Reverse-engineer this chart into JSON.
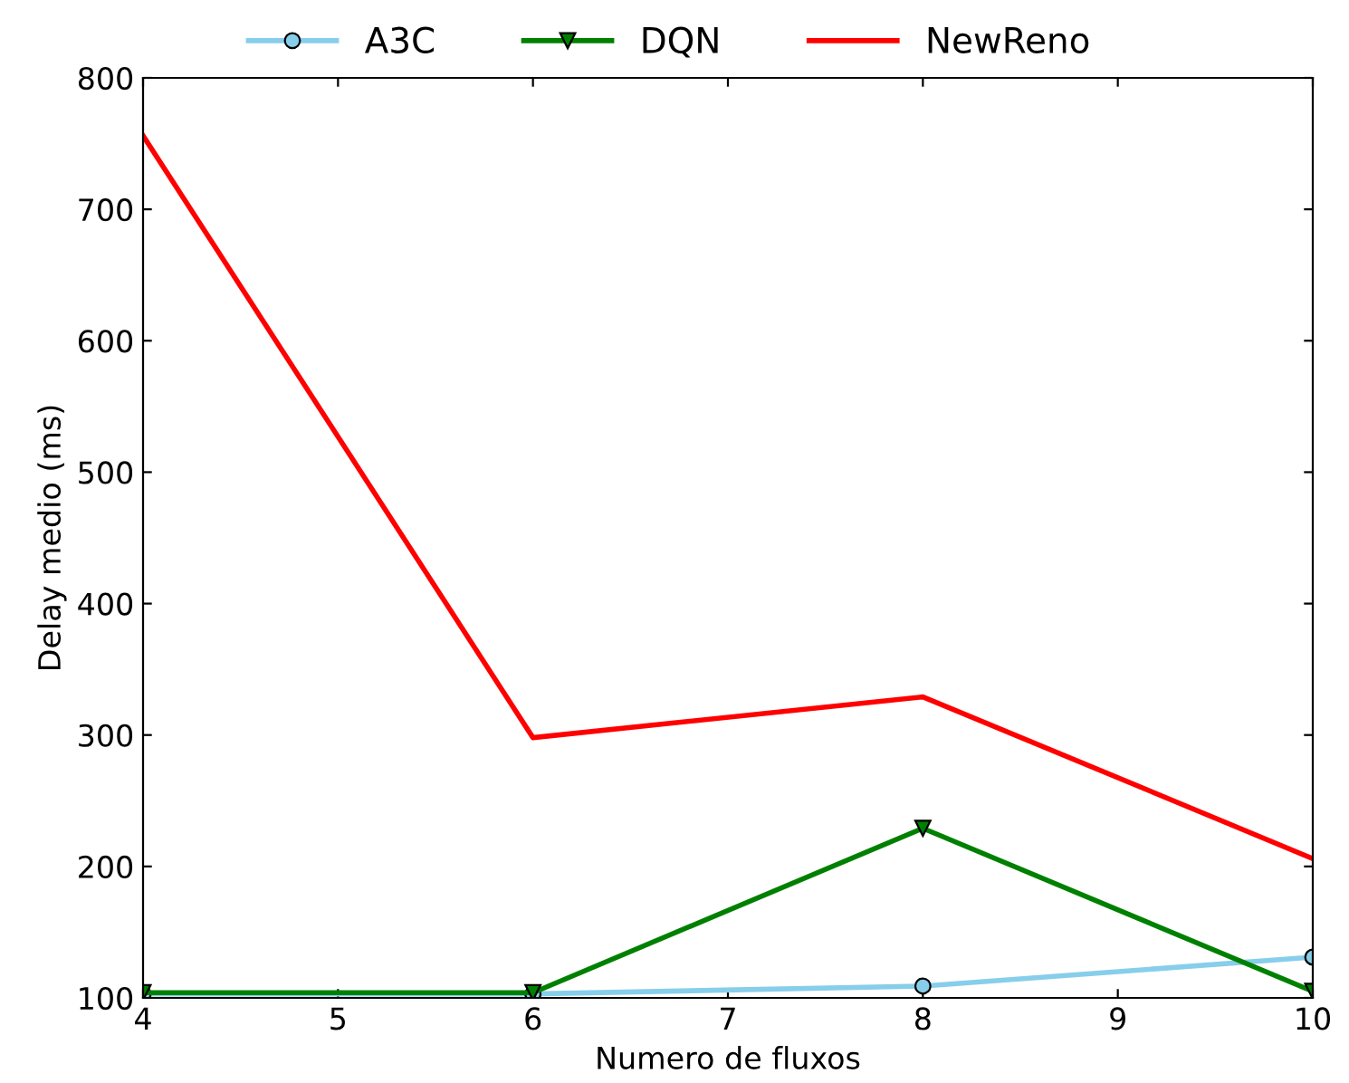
{
  "chart_data": {
    "type": "line",
    "xlabel": "Numero de fluxos",
    "ylabel": "Delay medio (ms)",
    "x": [
      4,
      6,
      8,
      10
    ],
    "series": [
      {
        "name": "A3C",
        "color": "#87ceeb",
        "marker": "circle",
        "values": [
          103,
          103,
          109,
          131
        ]
      },
      {
        "name": "DQN",
        "color": "#008000",
        "marker": "triangle",
        "values": [
          104,
          104,
          229,
          105
        ]
      },
      {
        "name": "NewReno",
        "color": "#ff0000",
        "marker": "none",
        "values": [
          756,
          298,
          329,
          206
        ]
      }
    ],
    "xlim": [
      4,
      10
    ],
    "xticks": [
      4,
      5,
      6,
      7,
      8,
      9,
      10
    ],
    "ylim": [
      100,
      800
    ],
    "yticks": [
      100,
      200,
      300,
      400,
      500,
      600,
      700,
      800
    ],
    "grid": false,
    "legend": "top",
    "line_style": "solid"
  }
}
